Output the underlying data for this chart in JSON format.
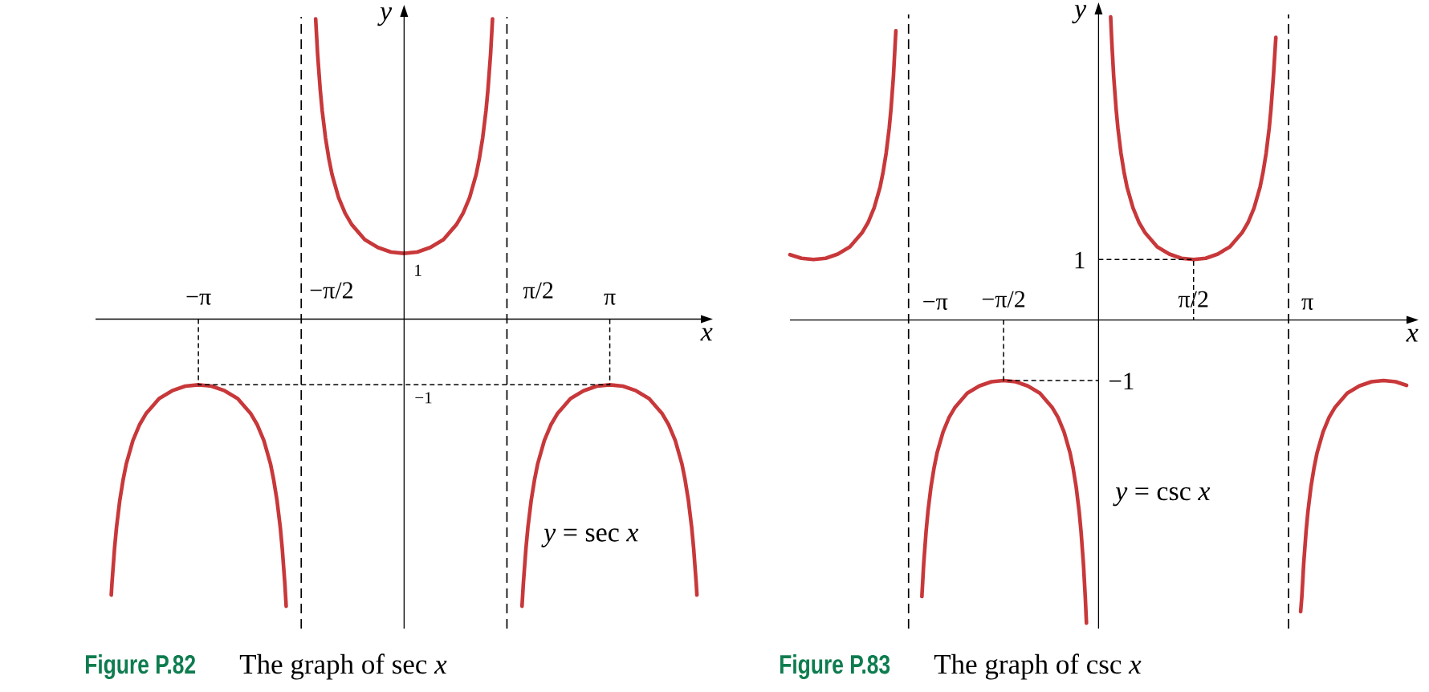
{
  "chart_data": [
    {
      "type": "line",
      "title": "The graph of sec *x*",
      "annotations": [
        "Figure P.82",
        "*y* = sec *x*"
      ],
      "xlabel": "x",
      "ylabel": "y",
      "xlim": [
        -4.71,
        4.53
      ],
      "ylim": [
        -4.71,
        4.6
      ],
      "tick_labels": "x",
      "xticks": [
        {
          "value": -3.14,
          "label": "−π"
        },
        {
          "value": 3.14,
          "label": "π"
        }
      ],
      "ref_lines": [
        {
          "axis": "x",
          "value": -1.57,
          "label": "−π/2",
          "color": "#000000",
          "line_style": "dashed"
        },
        {
          "axis": "x",
          "value": 1.57,
          "label": "π/2",
          "color": "#000000",
          "line_style": "dashed"
        }
      ],
      "series": [
        {
          "color": "#c8383a",
          "x": [
            -4.47,
            -4.46,
            -4.42,
            -4.39,
            -4.34,
            -4.29,
            -4.24,
            -4.14,
            -4.04,
            -3.94,
            -3.74,
            -3.54,
            -3.34,
            -3.14,
            -2.94,
            -2.74,
            -2.54,
            -2.34,
            -2.24,
            -2.14,
            -2.04,
            -1.99,
            -1.94,
            -1.89,
            -1.86,
            -1.82,
            -1.8,
            -1.57,
            -1.35,
            -1.32,
            -1.28,
            -1.25,
            -1.2,
            -1.15,
            -1.1,
            -1,
            -0.9,
            -0.8,
            -0.6,
            -0.4,
            -0.2,
            0,
            0.2,
            0.4,
            0.6,
            0.8,
            0.9,
            1,
            1.1,
            1.15,
            1.2,
            1.25,
            1.28,
            1.32,
            1.35,
            1.57,
            1.8,
            1.82,
            1.86,
            1.89,
            1.94,
            1.99,
            2.04,
            2.14,
            2.24,
            2.34,
            2.54,
            2.74,
            2.94,
            3.14,
            3.34,
            3.54,
            3.74,
            3.94,
            4.04,
            4.14,
            4.24,
            4.29,
            4.34,
            4.39,
            4.42,
            4.46,
            4.47
          ],
          "values": [
            -4.2,
            -4.03,
            -3.49,
            -3.17,
            -2.76,
            -2.45,
            -2.2,
            -1.85,
            -1.61,
            -1.44,
            -1.21,
            -1.09,
            -1.02,
            -1,
            -1.02,
            -1.09,
            -1.21,
            -1.44,
            -1.61,
            -1.85,
            -2.2,
            -2.45,
            -2.76,
            -3.17,
            -3.49,
            -4.03,
            -4.37,
            null,
            4.57,
            4.03,
            3.49,
            3.17,
            2.76,
            2.45,
            2.2,
            1.85,
            1.61,
            1.44,
            1.21,
            1.09,
            1.02,
            1,
            1.02,
            1.09,
            1.21,
            1.44,
            1.61,
            1.85,
            2.2,
            2.45,
            2.76,
            3.17,
            3.49,
            4.03,
            4.57,
            null,
            -4.37,
            -4.03,
            -3.49,
            -3.17,
            -2.76,
            -2.45,
            -2.2,
            -1.85,
            -1.61,
            -1.44,
            -1.21,
            -1.09,
            -1.02,
            -1,
            -1.02,
            -1.09,
            -1.21,
            -1.44,
            -1.61,
            -1.85,
            -2.2,
            -2.45,
            -2.76,
            -3.17,
            -3.49,
            -4.03,
            -4.2
          ],
          "value_labels": [
            null,
            null,
            null,
            null,
            null,
            null,
            null,
            null,
            null,
            null,
            null,
            null,
            null,
            null,
            null,
            null,
            null,
            null,
            null,
            null,
            null,
            null,
            null,
            null,
            null,
            null,
            null,
            null,
            null,
            null,
            null,
            null,
            null,
            null,
            null,
            null,
            null,
            null,
            null,
            null,
            null,
            "1",
            null,
            null,
            null,
            null,
            null,
            null,
            null,
            null,
            null,
            null,
            null,
            null,
            null,
            null,
            null,
            null,
            null,
            null,
            null,
            null,
            null,
            null,
            null,
            null,
            null,
            null,
            null,
            null,
            null,
            null,
            null,
            null,
            null,
            null,
            null,
            null,
            null,
            null,
            null,
            null,
            null
          ]
        },
        {
          "color": "#000000",
          "line_style": "dashed",
          "x": [
            -3.14,
            -3.14,
            0,
            3.14,
            3.14
          ],
          "values": [
            0,
            -1,
            -1,
            -1,
            0
          ],
          "value_labels": [
            null,
            null,
            "−1",
            null,
            null
          ]
        }
      ]
    },
    {
      "type": "line",
      "title": "The graph of csc *x*",
      "annotations": [
        "Figure P.83",
        "*y* = csc *x*"
      ],
      "xlabel": "x",
      "ylabel": "y",
      "xlim": [
        -5.1,
        5.09
      ],
      "ylim": [
        -5.1,
        5.05
      ],
      "tick_labels": "x",
      "xticks": [
        {
          "value": -1.57,
          "label": "−π/2"
        },
        {
          "value": 1.57,
          "label": "π/2"
        }
      ],
      "ref_lines": [
        {
          "axis": "x",
          "value": -3.14,
          "label": "−π",
          "color": "#000000",
          "line_style": "dashed"
        },
        {
          "axis": "x",
          "value": 3.14,
          "label": "π",
          "color": "#000000",
          "line_style": "dashed"
        }
      ],
      "series": [
        {
          "color": "#c8383a",
          "x": [
            -5.1,
            -4.91,
            -4.71,
            -4.51,
            -4.31,
            -4.11,
            -3.91,
            -3.81,
            -3.71,
            -3.61,
            -3.56,
            -3.51,
            -3.46,
            -3.43,
            -3.39,
            -3.35,
            -3.14,
            -2.92,
            -2.89,
            -2.85,
            -2.82,
            -2.77,
            -2.72,
            -2.67,
            -2.57,
            -2.47,
            -2.37,
            -2.17,
            -1.97,
            -1.77,
            -1.57,
            -1.37,
            -1.17,
            -0.97,
            -0.77,
            -0.67,
            -0.57,
            -0.47,
            -0.42,
            -0.37,
            -0.32,
            -0.29,
            -0.25,
            -0.22,
            -0.2,
            0,
            0.2,
            0.22,
            0.25,
            0.29,
            0.32,
            0.37,
            0.42,
            0.47,
            0.57,
            0.67,
            0.77,
            0.97,
            1.17,
            1.37,
            1.57,
            1.77,
            1.97,
            2.17,
            2.37,
            2.47,
            2.57,
            2.67,
            2.72,
            2.77,
            2.82,
            2.85,
            2.89,
            2.93,
            3.14,
            3.34,
            3.36,
            3.39,
            3.43,
            3.46,
            3.51,
            3.56,
            3.61,
            3.71,
            3.81,
            3.91,
            4.11,
            4.31,
            4.51,
            4.71,
            4.91,
            5.09
          ],
          "values": [
            1.08,
            1.02,
            1,
            1.02,
            1.09,
            1.21,
            1.44,
            1.61,
            1.85,
            2.2,
            2.45,
            2.76,
            3.17,
            3.49,
            4.03,
            4.78,
            null,
            -4.57,
            -4.03,
            -3.49,
            -3.17,
            -2.76,
            -2.45,
            -2.2,
            -1.85,
            -1.61,
            -1.44,
            -1.21,
            -1.09,
            -1.02,
            -1,
            -1.02,
            -1.09,
            -1.21,
            -1.44,
            -1.61,
            -1.85,
            -2.2,
            -2.45,
            -2.76,
            -3.17,
            -3.49,
            -4.03,
            -4.57,
            -5.01,
            null,
            5.01,
            4.57,
            4.03,
            3.49,
            3.17,
            2.76,
            2.45,
            2.2,
            1.85,
            1.61,
            1.44,
            1.21,
            1.09,
            1.02,
            1,
            1.02,
            1.09,
            1.21,
            1.44,
            1.61,
            1.85,
            2.2,
            2.45,
            2.76,
            3.17,
            3.49,
            4.03,
            4.67,
            null,
            -4.82,
            -4.57,
            -4.03,
            -3.49,
            -3.17,
            -2.76,
            -2.45,
            -2.2,
            -1.85,
            -1.61,
            -1.44,
            -1.21,
            -1.09,
            -1.02,
            -1,
            -1.02,
            -1.08
          ]
        },
        {
          "color": "#000000",
          "line_style": "dashed",
          "x": [
            -1.57,
            -1.57,
            0
          ],
          "values": [
            0,
            -1,
            -1
          ],
          "value_labels": [
            null,
            null,
            "−1"
          ]
        },
        {
          "color": "#000000",
          "line_style": "dashed",
          "x": [
            0,
            1.57,
            1.57
          ],
          "values": [
            1,
            1,
            0
          ],
          "value_labels": [
            "1",
            null,
            null
          ]
        }
      ]
    }
  ]
}
